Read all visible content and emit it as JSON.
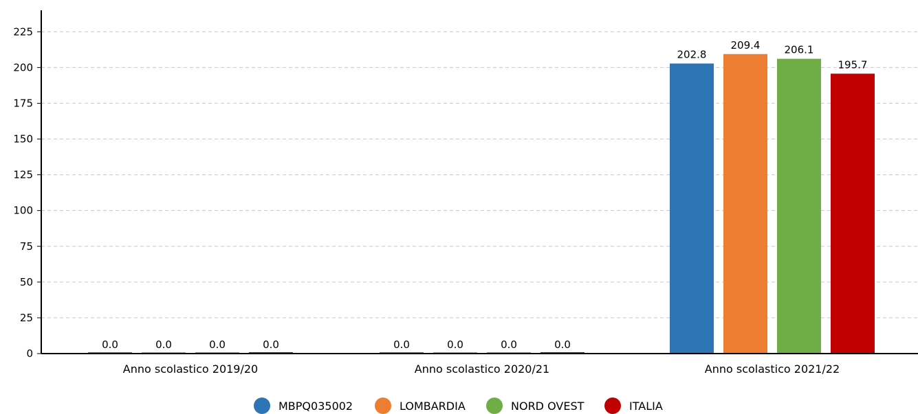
{
  "chart_data": {
    "type": "bar",
    "categories": [
      "Anno scolastico 2019/20",
      "Anno scolastico 2020/21",
      "Anno scolastico 2021/22"
    ],
    "series": [
      {
        "name": "MBPQ035002",
        "color": "#2e75b6",
        "values": [
          0.0,
          0.0,
          202.8
        ],
        "labels": [
          "0.0",
          "0.0",
          "202.8"
        ]
      },
      {
        "name": "LOMBARDIA",
        "color": "#ed7d31",
        "values": [
          0.0,
          0.0,
          209.4
        ],
        "labels": [
          "0.0",
          "0.0",
          "209.4"
        ]
      },
      {
        "name": "NORD OVEST",
        "color": "#70ad47",
        "values": [
          0.0,
          0.0,
          206.1
        ],
        "labels": [
          "0.0",
          "0.0",
          "206.1"
        ]
      },
      {
        "name": "ITALIA",
        "color": "#c00000",
        "values": [
          0.0,
          0.0,
          195.7
        ],
        "labels": [
          "0.0",
          "0.0",
          "195.7"
        ]
      }
    ],
    "title": "",
    "xlabel": "",
    "ylabel": "",
    "ylim": [
      0,
      240
    ],
    "yticks": [
      0,
      25,
      50,
      75,
      100,
      125,
      150,
      175,
      200,
      225
    ],
    "grid": true,
    "legend": "bottom-center"
  }
}
